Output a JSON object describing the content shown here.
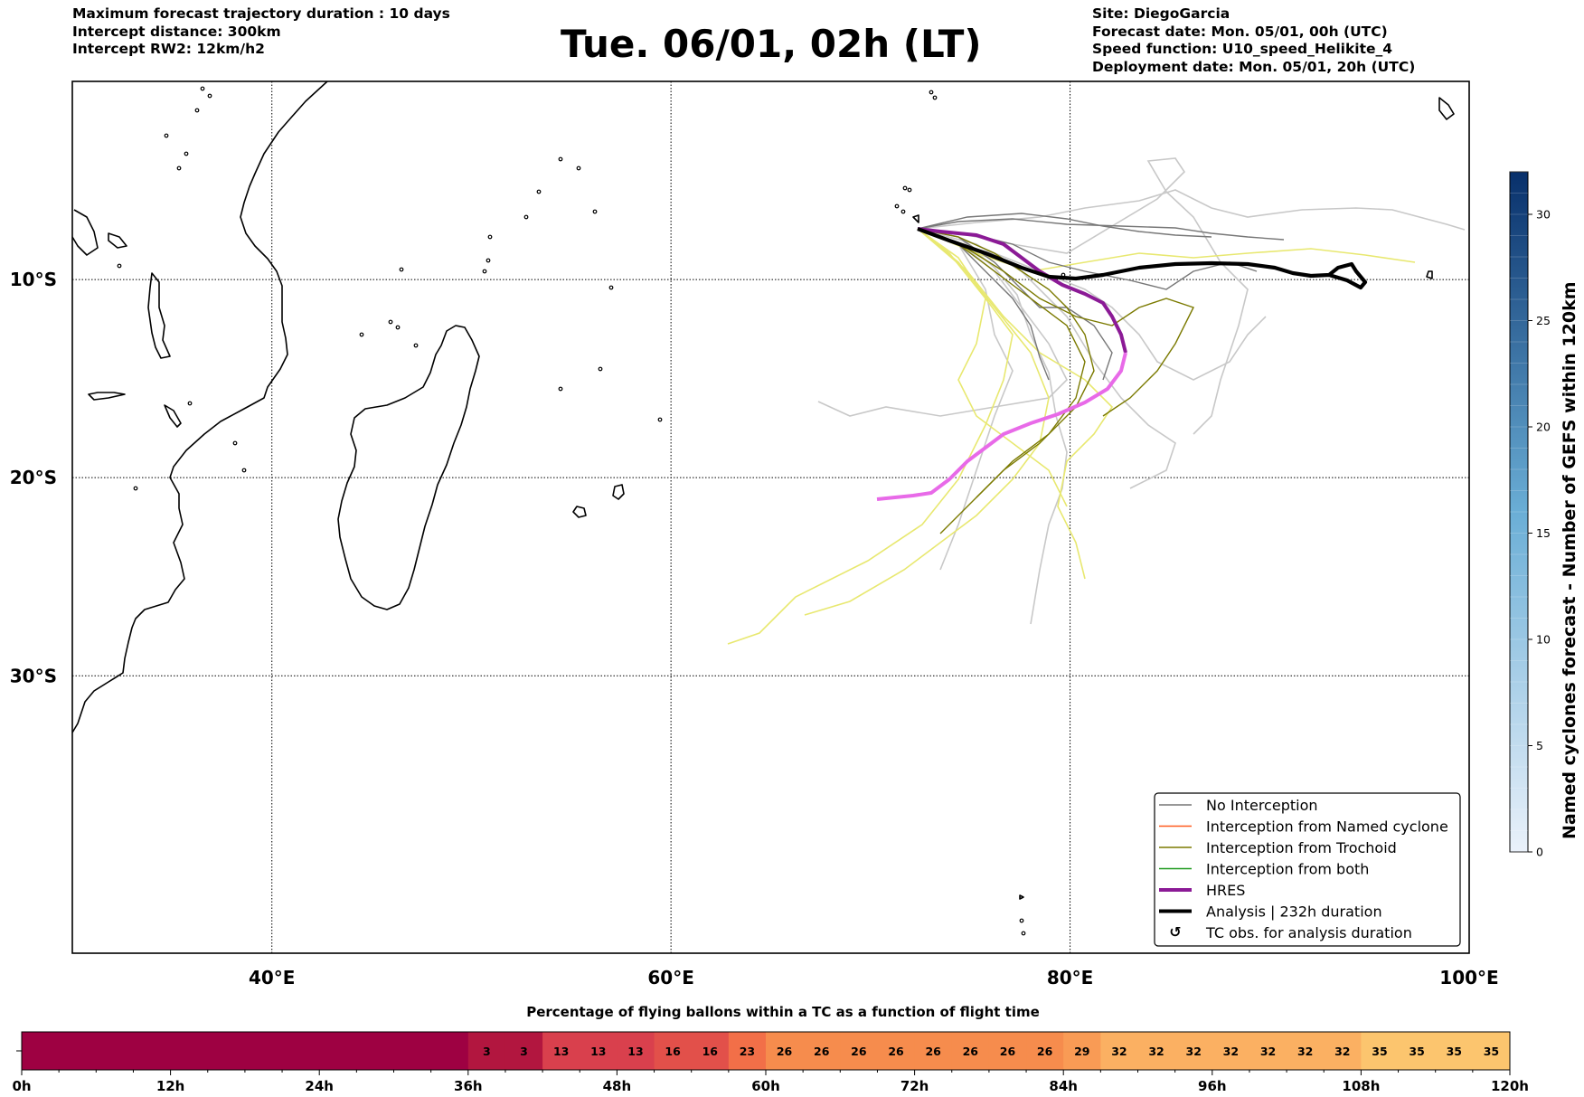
{
  "header": {
    "left": [
      "Maximum forecast trajectory duration : 10 days",
      "Intercept distance: 300km",
      "Intercept RW2: 12km/h2"
    ],
    "title": "Tue. 06/01, 02h (LT)",
    "right": [
      "Site: DiegoGarcia",
      "Forecast date: Mon. 05/01, 00h (UTC)",
      "Speed function: U10_speed_Helikite_4",
      "Deployment date: Mon. 05/01, 20h (UTC)"
    ]
  },
  "map": {
    "lon_range": [
      30,
      100
    ],
    "lat_range": [
      -44,
      0
    ],
    "lon_ticks": [
      {
        "value": 40,
        "label": "40°E"
      },
      {
        "value": 60,
        "label": "60°E"
      },
      {
        "value": 80,
        "label": "80°E"
      },
      {
        "value": 100,
        "label": "100°E"
      }
    ],
    "lat_ticks": [
      {
        "value": -10,
        "label": "10°S"
      },
      {
        "value": -20,
        "label": "20°S"
      },
      {
        "value": -30,
        "label": "30°S"
      }
    ]
  },
  "legend": {
    "items": [
      {
        "label": "No Interception",
        "color": "#777777",
        "style": "line-thin"
      },
      {
        "label": "Interception from Named cyclone",
        "color": "#ff5a1e",
        "style": "line-thin"
      },
      {
        "label": "Interception from Trochoid",
        "color": "#7b7a00",
        "style": "line-thin"
      },
      {
        "label": "Interception from both",
        "color": "#1f9a1f",
        "style": "line-thin"
      },
      {
        "label": "HRES",
        "color": "#8b1a96",
        "style": "line-thick"
      },
      {
        "label": "Analysis | 232h duration",
        "color": "#000000",
        "style": "line-thick"
      },
      {
        "label": "TC obs. for analysis duration",
        "color": "#000000",
        "style": "cyclone-icon",
        "icon": "cyclone-icon"
      }
    ]
  },
  "colorbar": {
    "label": "Named cyclones forecast - Number of GEFS within 120km",
    "min": 0,
    "max": 32,
    "ticks": [
      0,
      5,
      10,
      15,
      20,
      25,
      30
    ],
    "color_low": "#eaf1fa",
    "color_high": "#08306b"
  },
  "flight_bar": {
    "title": "Percentage of flying ballons within a TC as a function of flight time",
    "tick_labels": [
      "0h",
      "12h",
      "24h",
      "36h",
      "48h",
      "60h",
      "72h",
      "84h",
      "96h",
      "108h",
      "120h"
    ],
    "max_hours": 120,
    "segments": [
      {
        "start": 0,
        "end": 36,
        "label": "",
        "color": "#9e0142"
      },
      {
        "start": 36,
        "end": 39,
        "label": "3",
        "color": "#b2163f"
      },
      {
        "start": 39,
        "end": 42,
        "label": "3",
        "color": "#b2163f"
      },
      {
        "start": 42,
        "end": 45,
        "label": "13",
        "color": "#d9404d"
      },
      {
        "start": 45,
        "end": 48,
        "label": "13",
        "color": "#d9404d"
      },
      {
        "start": 48,
        "end": 51,
        "label": "13",
        "color": "#d9404d"
      },
      {
        "start": 51,
        "end": 54,
        "label": "16",
        "color": "#e2504a"
      },
      {
        "start": 54,
        "end": 57,
        "label": "16",
        "color": "#e2504a"
      },
      {
        "start": 57,
        "end": 60,
        "label": "23",
        "color": "#f26f48"
      },
      {
        "start": 60,
        "end": 63,
        "label": "26",
        "color": "#f68c4d"
      },
      {
        "start": 63,
        "end": 66,
        "label": "26",
        "color": "#f68c4d"
      },
      {
        "start": 66,
        "end": 69,
        "label": "26",
        "color": "#f68c4d"
      },
      {
        "start": 69,
        "end": 72,
        "label": "26",
        "color": "#f68c4d"
      },
      {
        "start": 72,
        "end": 75,
        "label": "26",
        "color": "#f68c4d"
      },
      {
        "start": 75,
        "end": 78,
        "label": "26",
        "color": "#f68c4d"
      },
      {
        "start": 78,
        "end": 81,
        "label": "26",
        "color": "#f68c4d"
      },
      {
        "start": 81,
        "end": 84,
        "label": "26",
        "color": "#f68c4d"
      },
      {
        "start": 84,
        "end": 87,
        "label": "29",
        "color": "#f99b55"
      },
      {
        "start": 87,
        "end": 90,
        "label": "32",
        "color": "#fbb062"
      },
      {
        "start": 90,
        "end": 93,
        "label": "32",
        "color": "#fbb062"
      },
      {
        "start": 93,
        "end": 96,
        "label": "32",
        "color": "#fbb062"
      },
      {
        "start": 96,
        "end": 99,
        "label": "32",
        "color": "#fbb062"
      },
      {
        "start": 99,
        "end": 102,
        "label": "32",
        "color": "#fbb062"
      },
      {
        "start": 102,
        "end": 105,
        "label": "32",
        "color": "#fbb062"
      },
      {
        "start": 105,
        "end": 108,
        "label": "32",
        "color": "#fbb062"
      },
      {
        "start": 108,
        "end": 111,
        "label": "35",
        "color": "#fcc56e"
      },
      {
        "start": 111,
        "end": 114,
        "label": "35",
        "color": "#fcc56e"
      },
      {
        "start": 114,
        "end": 117,
        "label": "35",
        "color": "#fcc56e"
      },
      {
        "start": 117,
        "end": 120,
        "label": "35",
        "color": "#fcc56e"
      }
    ]
  }
}
